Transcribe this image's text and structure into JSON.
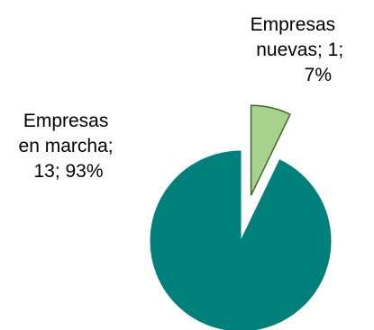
{
  "chart_data": {
    "type": "pie",
    "title": "",
    "categories": [
      "Empresas en marcha",
      "Empresas nuevas"
    ],
    "values": [
      13,
      1
    ],
    "percentages": [
      93,
      7
    ],
    "labels": [
      [
        "Empresas",
        "en marcha;",
        "13; 93%"
      ],
      [
        "Empresas",
        "nuevas; 1;",
        "7%"
      ]
    ],
    "colors": [
      "#00807a",
      "#a9d18e"
    ],
    "outline_colors": [
      "#00807a",
      "#3d6b25"
    ],
    "legend": "none",
    "exploded": "Empresas nuevas"
  }
}
